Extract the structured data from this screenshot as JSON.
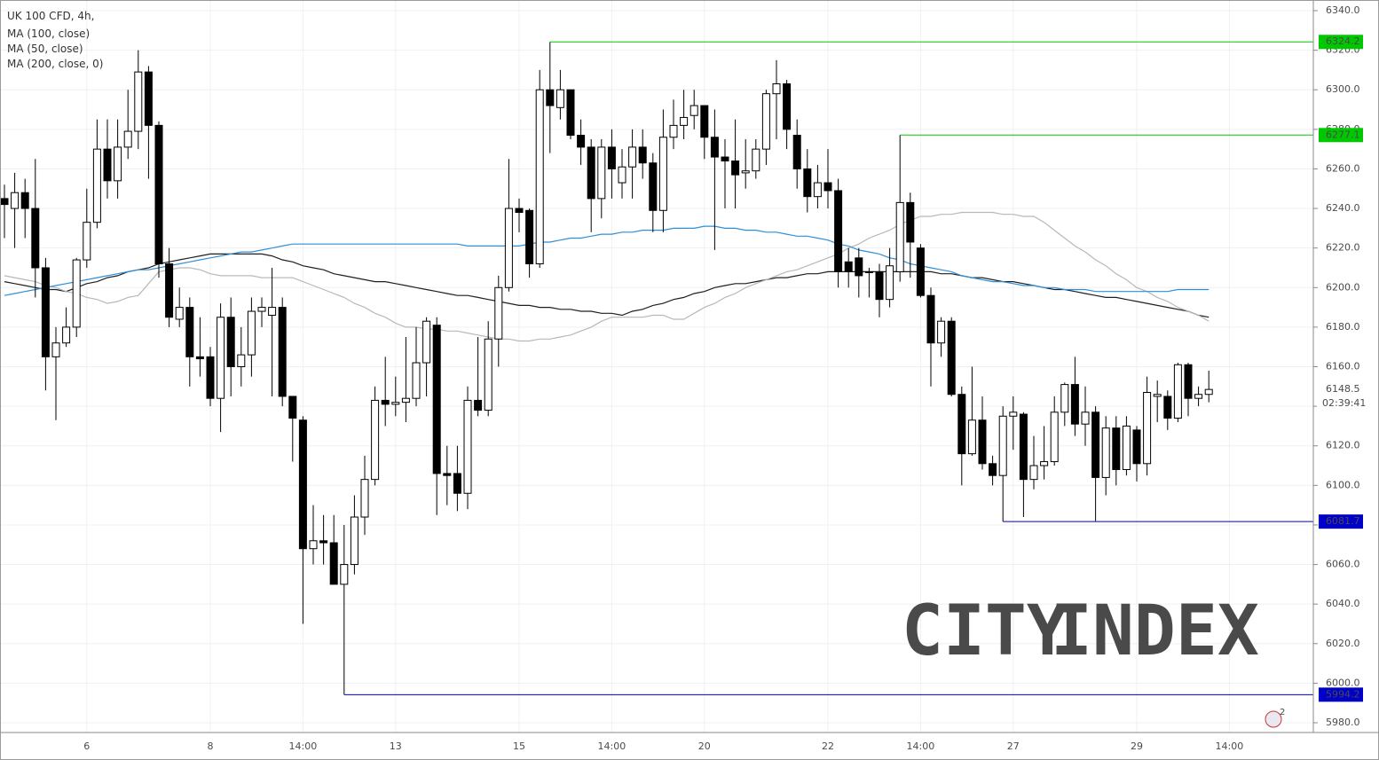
{
  "chart_data": {
    "type": "candlestick",
    "title": "UK 100 CFD, 4h,",
    "categories": [
      null,
      null,
      null,
      null,
      null,
      null,
      null,
      null,
      "6",
      null,
      null,
      null,
      null,
      null,
      null,
      null,
      null,
      null,
      null,
      null,
      "8",
      null,
      null,
      null,
      null,
      null,
      null,
      null,
      null,
      "14:00",
      null,
      null,
      null,
      null,
      null,
      null,
      null,
      null,
      "13",
      null,
      null,
      null,
      null,
      null,
      null,
      null,
      null,
      null,
      null,
      null,
      "15",
      null,
      null,
      null,
      null,
      null,
      null,
      null,
      null,
      "14:00",
      null,
      null,
      null,
      null,
      null,
      null,
      null,
      null,
      "20",
      null,
      null,
      null,
      null,
      null,
      null,
      null,
      null,
      null,
      null,
      null,
      "22",
      null,
      null,
      null,
      null,
      null,
      null,
      null,
      null,
      "14:00",
      null,
      null,
      null,
      null,
      null,
      null,
      null,
      null,
      "27",
      null,
      null,
      null,
      null,
      null,
      null,
      null,
      null,
      null,
      null,
      null,
      "29",
      null,
      null,
      null,
      null,
      null,
      null,
      null,
      null,
      "14:00"
    ],
    "open": [
      6245,
      6240,
      6248,
      6240,
      6210,
      6165,
      6172,
      6180,
      6214,
      6233,
      6270,
      6254,
      6271,
      6279,
      6309,
      6282,
      6212,
      6184,
      6190,
      6165,
      6165,
      6144,
      6185,
      6160,
      6166,
      6188,
      6186,
      6190,
      6145,
      6133,
      6068,
      6072,
      6071,
      6050,
      6060,
      6084,
      6103,
      6143,
      6141,
      6142,
      6144,
      6162,
      6181,
      6106,
      6106,
      6096,
      6143,
      6138,
      6174,
      6200,
      6240,
      6239,
      6212,
      6300,
      6291,
      6300,
      6277,
      6271,
      6245,
      6271,
      6253,
      6261,
      6271,
      6263,
      6239,
      6276,
      6282,
      6287,
      6292,
      6276,
      6266,
      6264,
      6258,
      6259,
      6270,
      6298,
      6303,
      6277,
      6260,
      6246,
      6253,
      6249,
      6213,
      6215,
      6208,
      6208,
      6194,
      6208,
      6243,
      6220,
      6196,
      6172,
      6183,
      6146,
      6116,
      6133,
      6111,
      6105,
      6135,
      6136,
      6103,
      6110,
      6112,
      6137,
      6151,
      6131,
      6137,
      6104,
      6129,
      6108,
      6128,
      6111,
      6145,
      6145,
      6134,
      6161,
      6144,
      6146,
      null,
      null
    ],
    "high": [
      6252,
      6258,
      6255,
      6265,
      6215,
      6180,
      6190,
      6215,
      6250,
      6285,
      6285,
      6285,
      6300,
      6320,
      6312,
      6284,
      6220,
      6200,
      6195,
      6185,
      6170,
      6192,
      6195,
      6180,
      6195,
      6195,
      6210,
      6195,
      6145,
      6135,
      6090,
      6085,
      6085,
      6080,
      6095,
      6115,
      6150,
      6165,
      6155,
      6175,
      6180,
      6185,
      6185,
      6120,
      6120,
      6150,
      6175,
      6183,
      6206,
      6265,
      6245,
      6240,
      6310,
      6324.2,
      6310,
      6300,
      6285,
      6275,
      6275,
      6280,
      6270,
      6280,
      6280,
      6268,
      6290,
      6295,
      6300,
      6300,
      6292,
      6290,
      6275,
      6285,
      6275,
      6275,
      6300,
      6315,
      6305,
      6285,
      6270,
      6262,
      6270,
      6255,
      6220,
      6220,
      6210,
      6212,
      6220,
      6277.1,
      6248,
      6222,
      6200,
      6185,
      6185,
      6150,
      6160,
      6145,
      6115,
      6140,
      6145,
      6137,
      6125,
      6130,
      6145,
      6152,
      6165,
      6150,
      6140,
      6135,
      6135,
      6135,
      6130,
      6155,
      6153,
      6148,
      6162,
      6162,
      6150,
      6158,
      null,
      null
    ],
    "low": [
      6225,
      6220,
      6225,
      6195,
      6148,
      6133,
      6170,
      6175,
      6210,
      6230,
      6245,
      6245,
      6265,
      6270,
      6255,
      6205,
      6180,
      6180,
      6150,
      6155,
      6140,
      6127,
      6145,
      6150,
      6155,
      6180,
      6145,
      6140,
      6112,
      6030,
      6060,
      6060,
      6050,
      5994.2,
      6055,
      6075,
      6100,
      6130,
      6135,
      6132,
      6140,
      6145,
      6085,
      6090,
      6087,
      6088,
      6135,
      6135,
      6160,
      6198,
      6228,
      6205,
      6210,
      6268,
      6285,
      6275,
      6262,
      6228,
      6235,
      6245,
      6245,
      6245,
      6255,
      6228,
      6228,
      6270,
      6275,
      6280,
      6265,
      6219,
      6240,
      6240,
      6250,
      6255,
      6262,
      6275,
      6270,
      6250,
      6238,
      6240,
      6240,
      6200,
      6200,
      6195,
      6195,
      6185,
      6190,
      6203,
      6205,
      6195,
      6150,
      6165,
      6145,
      6100,
      6115,
      6108,
      6100,
      6081.7,
      6118,
      6084,
      6098,
      6103,
      6110,
      6130,
      6125,
      6120,
      6082,
      6095,
      6100,
      6105,
      6102,
      6105,
      6132,
      6128,
      6132,
      6135,
      6140,
      6142,
      null,
      null
    ],
    "close": [
      6242,
      6248,
      6240,
      6210,
      6165,
      6172,
      6180,
      6214,
      6233,
      6270,
      6254,
      6271,
      6279,
      6309,
      6282,
      6212,
      6185,
      6190,
      6165,
      6164,
      6144,
      6185,
      6160,
      6166,
      6188,
      6190,
      6190,
      6145,
      6134,
      6068,
      6072,
      6071,
      6050,
      6060,
      6084,
      6103,
      6143,
      6141,
      6142,
      6144,
      6162,
      6183,
      6106,
      6105,
      6096,
      6143,
      6138,
      6174,
      6200,
      6240,
      6238,
      6212,
      6300,
      6292,
      6300,
      6277,
      6271,
      6245,
      6271,
      6260,
      6261,
      6271,
      6263,
      6239,
      6276,
      6282,
      6286,
      6292,
      6276,
      6266,
      6264,
      6257,
      6259,
      6270,
      6298,
      6303,
      6280,
      6260,
      6246,
      6253,
      6249,
      6208,
      6208,
      6206,
      6208,
      6194,
      6211,
      6243,
      6223,
      6196,
      6172,
      6183,
      6146,
      6116,
      6133,
      6111,
      6105,
      6135,
      6137,
      6103,
      6110,
      6112,
      6137,
      6151,
      6131,
      6137,
      6104,
      6129,
      6108,
      6130,
      6111,
      6147,
      6146,
      6134,
      6161,
      6144,
      6146,
      6148.5,
      null,
      null
    ],
    "series": [
      {
        "name": "MA (100, close)",
        "color": "#1f1f1f",
        "values": [
          6203,
          6202,
          6201,
          6200,
          6199,
          6199,
          6198,
          6200,
          6202,
          6203,
          6205,
          6206,
          6208,
          6209,
          6210,
          6212,
          6213,
          6214,
          6215,
          6216,
          6217,
          6217,
          6217,
          6217,
          6217,
          6217,
          6216,
          6214,
          6213,
          6211,
          6210,
          6209,
          6207,
          6206,
          6205,
          6204,
          6203,
          6203,
          6202,
          6201,
          6200,
          6199,
          6198,
          6197,
          6196,
          6196,
          6195,
          6194,
          6193,
          6192,
          6191,
          6191,
          6190,
          6190,
          6189,
          6189,
          6188,
          6188,
          6187,
          6187,
          6186,
          6188,
          6189,
          6191,
          6192,
          6194,
          6195,
          6197,
          6198,
          6200,
          6201,
          6202,
          6202,
          6203,
          6204,
          6205,
          6205,
          6206,
          6207,
          6207,
          6208,
          6208,
          6208,
          6208,
          6208,
          6208,
          6208,
          6208,
          6208,
          6208,
          6208,
          6207,
          6207,
          6206,
          6205,
          6205,
          6204,
          6203,
          6203,
          6202,
          6201,
          6200,
          6199,
          6199,
          6198,
          6197,
          6196,
          6195,
          6195,
          6194,
          6193,
          6192,
          6191,
          6190,
          6189,
          6188,
          6186,
          6185,
          null,
          null
        ]
      },
      {
        "name": "MA (50, close)",
        "color": "#b8b8b8",
        "values": [
          6206,
          6205,
          6204,
          6203,
          6201,
          6200,
          6198,
          6197,
          6195,
          6194,
          6192,
          6193,
          6195,
          6196,
          6202,
          6208,
          6209,
          6210,
          6210,
          6209,
          6207,
          6206,
          6206,
          6206,
          6206,
          6205,
          6205,
          6205,
          6205,
          6203,
          6201,
          6199,
          6197,
          6195,
          6192,
          6190,
          6187,
          6185,
          6182,
          6180,
          6180,
          6179,
          6179,
          6178,
          6178,
          6177,
          6176,
          6175,
          6174,
          6174,
          6173,
          6173,
          6174,
          6174,
          6175,
          6176,
          6178,
          6180,
          6183,
          6185,
          6185,
          6185,
          6185,
          6186,
          6186,
          6184,
          6184,
          6187,
          6190,
          6192,
          6195,
          6197,
          6200,
          6202,
          6204,
          6206,
          6208,
          6209,
          6211,
          6213,
          6215,
          6217,
          6220,
          6222,
          6225,
          6227,
          6229,
          6232,
          6234,
          6236,
          6236,
          6237,
          6237,
          6238,
          6238,
          6238,
          6238,
          6237,
          6237,
          6236,
          6236,
          6233,
          6229,
          6225,
          6221,
          6218,
          6214,
          6211,
          6207,
          6204,
          6200,
          6198,
          6195,
          6193,
          6190,
          6188,
          6186,
          6183,
          null,
          null
        ]
      },
      {
        "name": "MA (200, close, 0)",
        "color": "#2e8fd8",
        "values": [
          6196,
          6197,
          6198,
          6199,
          6200,
          6201,
          6202,
          6203,
          6204,
          6205,
          6206,
          6207,
          6208,
          6209,
          6209,
          6210,
          6211,
          6212,
          6213,
          6214,
          6215,
          6216,
          6217,
          6218,
          6218,
          6219,
          6220,
          6221,
          6222,
          6222,
          6222,
          6222,
          6222,
          6222,
          6222,
          6222,
          6222,
          6222,
          6222,
          6222,
          6222,
          6222,
          6222,
          6222,
          6222,
          6221,
          6221,
          6221,
          6221,
          6221,
          6221,
          6222,
          6223,
          6223,
          6224,
          6225,
          6225,
          6226,
          6227,
          6227,
          6228,
          6228,
          6229,
          6229,
          6229,
          6230,
          6230,
          6230,
          6231,
          6231,
          6230,
          6230,
          6229,
          6229,
          6228,
          6228,
          6227,
          6226,
          6226,
          6225,
          6224,
          6222,
          6221,
          6219,
          6218,
          6217,
          6215,
          6214,
          6212,
          6211,
          6210,
          6209,
          6208,
          6206,
          6205,
          6204,
          6203,
          6203,
          6202,
          6201,
          6201,
          6200,
          6200,
          6199,
          6199,
          6199,
          6198,
          6198,
          6198,
          6198,
          6198,
          6198,
          6198,
          6198,
          6199,
          6199,
          6199,
          6199,
          null,
          null
        ]
      }
    ],
    "levels": [
      {
        "value": 6324.2,
        "start": 53,
        "color": "#00c800"
      },
      {
        "value": 6277.1,
        "start": 87,
        "color": "#00c800"
      },
      {
        "value": 6081.7,
        "start": 97,
        "color": "#0000c8"
      },
      {
        "value": 5994.2,
        "start": 33,
        "color": "#0000c8"
      }
    ],
    "last_price": 6148.5,
    "countdown": "02:39:41",
    "ylim": [
      5980,
      6340
    ],
    "yticks": [
      {
        "value": 5980,
        "label": "5980.0"
      },
      {
        "value": 6000,
        "label": "6000.0"
      },
      {
        "value": 6020,
        "label": "6020.0"
      },
      {
        "value": 6040,
        "label": "6040.0"
      },
      {
        "value": 6060,
        "label": "6060.0"
      },
      {
        "value": 6080,
        "label": "6080.0"
      },
      {
        "value": 6100,
        "label": "6100.0"
      },
      {
        "value": 6120,
        "label": "6120.0"
      },
      {
        "value": 6140,
        "label": "6140.0"
      },
      {
        "value": 6160,
        "label": "6160.0"
      },
      {
        "value": 6180,
        "label": "6180.0"
      },
      {
        "value": 6200,
        "label": "6200.0"
      },
      {
        "value": 6220,
        "label": "6220.0"
      },
      {
        "value": 6240,
        "label": "6240.0"
      },
      {
        "value": 6260,
        "label": "6260.0"
      },
      {
        "value": 6280,
        "label": "6280.0"
      },
      {
        "value": 6300,
        "label": "6300.0"
      },
      {
        "value": 6320,
        "label": "6320.0"
      },
      {
        "value": 6340,
        "label": "6340.0"
      }
    ],
    "grid": true,
    "up_color": "#ffffff",
    "down_color": "#000000",
    "watermark": [
      "CITY",
      "INDEX"
    ],
    "watermark_colors": [
      "#1a1a1a",
      "#ffd500"
    ],
    "notification_count": "2"
  }
}
